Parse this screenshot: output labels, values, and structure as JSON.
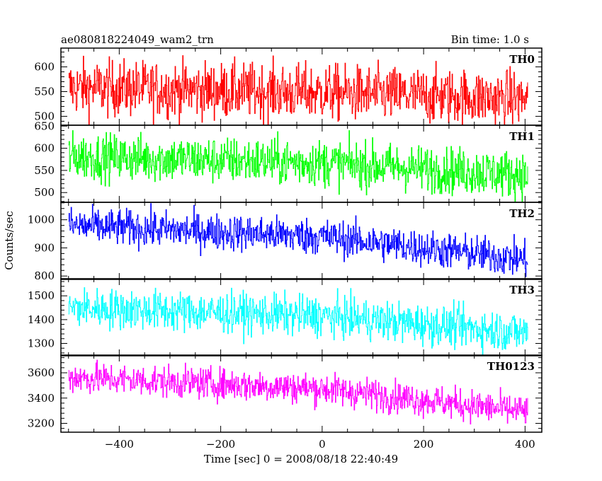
{
  "chart_data": {
    "type": "line",
    "title_left": "ae080818224049_wam2_trn",
    "title_right": "Bin time: 1.0 s",
    "xlabel": "Time [sec] 0 = 2008/08/18 22:40:49",
    "ylabel": "Counts/sec",
    "xlim": [
      -515,
      433
    ],
    "x_ticks": [
      -400,
      -200,
      0,
      200,
      400
    ],
    "x_range_data": [
      -500,
      405
    ],
    "panels": [
      {
        "name": "TH0",
        "color": "#ff0000",
        "ylim": [
          482,
          638
        ],
        "y_ticks": [
          500,
          550,
          600
        ],
        "y_tick_labels": [
          "500",
          "550",
          "600"
        ],
        "trend": [
          [
            -500,
            558
          ],
          [
            0,
            548
          ],
          [
            405,
            535
          ]
        ],
        "noise": 28
      },
      {
        "name": "TH1",
        "color": "#00ff00",
        "ylim": [
          478,
          652
        ],
        "y_ticks": [
          500,
          550,
          600,
          650
        ],
        "y_tick_labels": [
          "500",
          "550",
          "600",
          "650"
        ],
        "trend": [
          [
            -500,
            582
          ],
          [
            0,
            567
          ],
          [
            405,
            540
          ]
        ],
        "noise": 26
      },
      {
        "name": "TH2",
        "color": "#0000ff",
        "ylim": [
          788,
          1062
        ],
        "y_ticks": [
          800,
          900,
          1000
        ],
        "y_tick_labels": [
          "800",
          "900",
          "1000"
        ],
        "trend": [
          [
            -500,
            980
          ],
          [
            0,
            940
          ],
          [
            405,
            858
          ]
        ],
        "noise": 32
      },
      {
        "name": "TH3",
        "color": "#00ffff",
        "ylim": [
          1248,
          1572
        ],
        "y_ticks": [
          1300,
          1400,
          1500
        ],
        "y_tick_labels": [
          "1300",
          "1400",
          "1500"
        ],
        "trend": [
          [
            -500,
            1450
          ],
          [
            0,
            1415
          ],
          [
            405,
            1345
          ]
        ],
        "noise": 42
      },
      {
        "name": "TH0123",
        "color": "#ff00ff",
        "ylim": [
          3130,
          3740
        ],
        "y_ticks": [
          3200,
          3400,
          3600
        ],
        "y_tick_labels": [
          "3200",
          "3400",
          "3600"
        ],
        "trend": [
          [
            -500,
            3565
          ],
          [
            0,
            3475
          ],
          [
            405,
            3290
          ]
        ],
        "noise": 62
      }
    ]
  }
}
